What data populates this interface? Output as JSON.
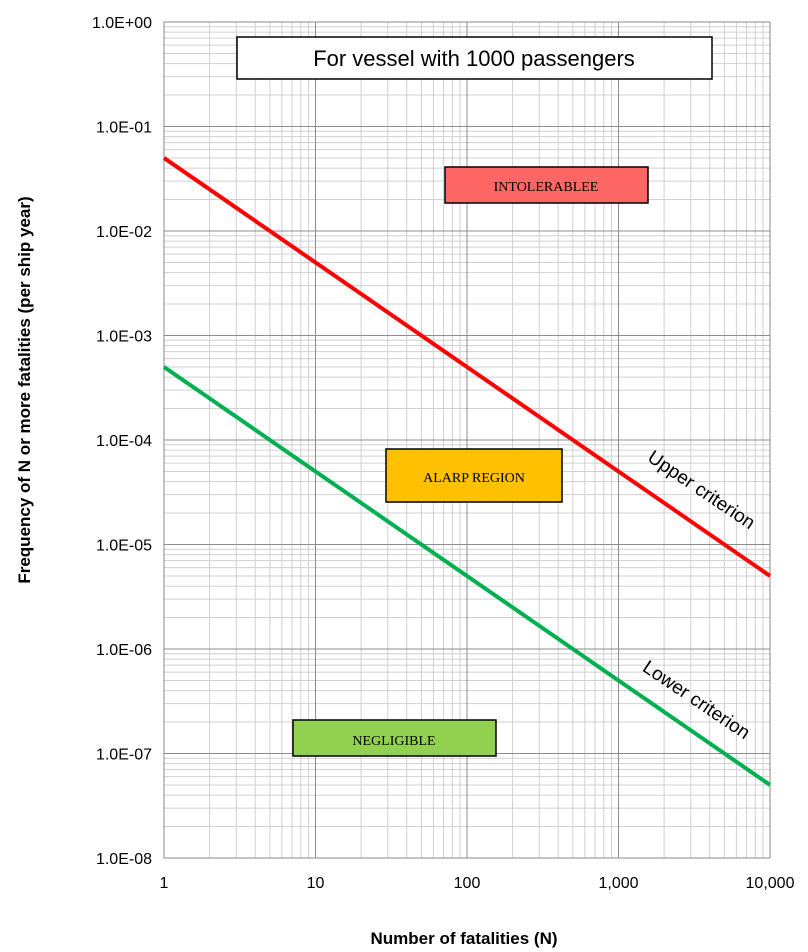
{
  "chart_data": {
    "type": "line",
    "title": "For vessel with 1000 passengers",
    "xlabel": "Number of fatalities (N)",
    "ylabel": "Frequency of N or more fatalities  (per  ship year)",
    "x_scale": "log",
    "y_scale": "log",
    "xlim": [
      1,
      10000
    ],
    "ylim": [
      1e-08,
      1
    ],
    "grid": true,
    "x_ticks": [
      1,
      10,
      100,
      1000,
      10000
    ],
    "x_tick_labels": [
      "1",
      "10",
      "100",
      "1,000",
      "10,000"
    ],
    "y_ticks": [
      1,
      0.1,
      0.01,
      0.001,
      0.0001,
      1e-05,
      1e-06,
      1e-07,
      1e-08
    ],
    "y_tick_labels": [
      "1.0E+00",
      "1.0E-01",
      "1.0E-02",
      "1.0E-03",
      "1.0E-04",
      "1.0E-05",
      "1.0E-06",
      "1.0E-07",
      "1.0E-08"
    ],
    "series": [
      {
        "name": "Upper criterion",
        "color": "#ff0000",
        "x": [
          1,
          10000
        ],
        "y": [
          0.05,
          5e-06
        ]
      },
      {
        "name": "Lower criterion",
        "color": "#00b050",
        "x": [
          1,
          10000
        ],
        "y": [
          0.0005,
          5e-08
        ]
      }
    ],
    "regions": [
      {
        "label": "INTOLERABLEE",
        "color": "#ff6666"
      },
      {
        "label": "ALARP REGION",
        "color": "#ffc000"
      },
      {
        "label": "NEGLIGIBLE",
        "color": "#92d050"
      }
    ]
  }
}
